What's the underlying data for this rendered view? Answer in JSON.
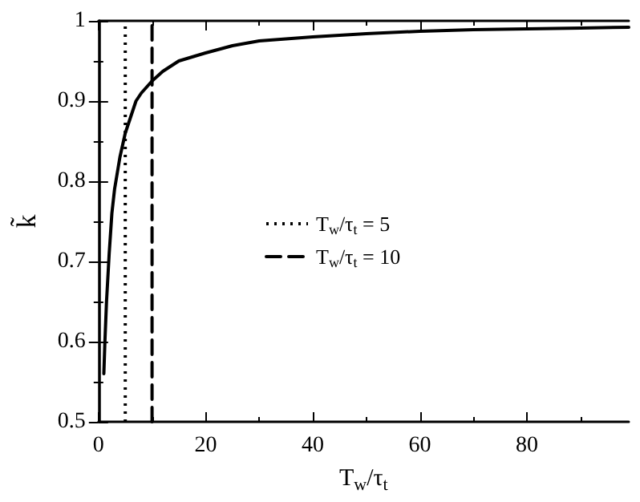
{
  "chart_data": {
    "type": "line",
    "xlabel": "T$_{w}$/τ$_{t}$",
    "ylabel": "k̃",
    "xlim": [
      0,
      99
    ],
    "xticks": [
      0,
      20,
      40,
      60,
      80
    ],
    "ylim": [
      0.5,
      1
    ],
    "yticks": [
      0.5,
      0.6,
      0.7,
      0.8,
      0.9,
      1
    ],
    "grid": false,
    "legend": "center",
    "marker": "none",
    "series": [
      {
        "color": "#000000",
        "line_style": "solid",
        "x": [
          1,
          1.2,
          1.5,
          2,
          2.5,
          3,
          4,
          5,
          6,
          7,
          8,
          10,
          12,
          15,
          20,
          25,
          30,
          40,
          50,
          60,
          70,
          80,
          90,
          99
        ],
        "values": [
          0.56,
          0.6,
          0.65,
          0.71,
          0.76,
          0.79,
          0.83,
          0.86,
          0.88,
          0.9,
          0.91,
          0.925,
          0.937,
          0.95,
          0.96,
          0.969,
          0.975,
          0.98,
          0.984,
          0.987,
          0.989,
          0.99,
          0.991,
          0.992
        ]
      },
      {
        "name": "T$_{w}$/τ$_{t}$ = 5",
        "color": "#000000",
        "line_style": "dotted",
        "x": [
          5,
          5
        ],
        "values": [
          0.5,
          1
        ]
      },
      {
        "name": "T$_{w}$/τ$_{t}$ = 10",
        "color": "#000000",
        "line_style": "dashed",
        "x": [
          10,
          10
        ],
        "values": [
          0.5,
          1
        ]
      }
    ]
  }
}
